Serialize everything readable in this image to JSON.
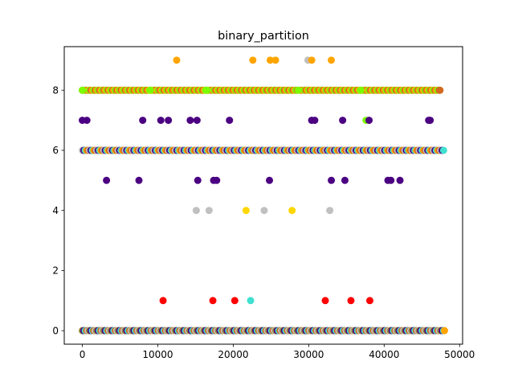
{
  "chart_data": {
    "type": "scatter",
    "title": "binary_partition",
    "xlabel": "",
    "ylabel": "",
    "xlim": [
      -2400,
      50400
    ],
    "ylim": [
      -0.45,
      9.45
    ],
    "x_ticks": [
      0,
      10000,
      20000,
      30000,
      40000,
      50000
    ],
    "y_ticks": [
      0,
      2,
      4,
      6,
      8
    ],
    "grid": false,
    "legend": "none",
    "colors": {
      "indigo": "#4b0082",
      "chocolate": "#d2691e",
      "orange": "#ffa500",
      "lawngreen": "#7cfc00",
      "silver": "#c0c0c0",
      "gold": "#ffd700",
      "red": "#ff0000",
      "turquoise": "#40e0d0",
      "olive": "#9a8a3a"
    },
    "dense_bands": [
      {
        "y": 0,
        "x_from": 0,
        "x_to": 48000,
        "colors": [
          "olive",
          "chocolate",
          "indigo",
          "silver",
          "turquoise"
        ]
      },
      {
        "y": 6,
        "x_from": 0,
        "x_to": 47900,
        "colors": [
          "indigo",
          "chocolate",
          "turquoise",
          "silver",
          "orange"
        ]
      },
      {
        "y": 8,
        "x_from": 0,
        "x_to": 47400,
        "colors": [
          "chocolate",
          "orange",
          "lawngreen"
        ]
      }
    ],
    "points": [
      {
        "x": 12500,
        "y": 9,
        "c": "orange"
      },
      {
        "x": 22600,
        "y": 9,
        "c": "orange"
      },
      {
        "x": 24900,
        "y": 9,
        "c": "orange"
      },
      {
        "x": 25600,
        "y": 9,
        "c": "orange"
      },
      {
        "x": 29900,
        "y": 9,
        "c": "silver"
      },
      {
        "x": 30400,
        "y": 9,
        "c": "orange"
      },
      {
        "x": 33000,
        "y": 9,
        "c": "orange"
      },
      {
        "x": 0,
        "y": 8,
        "c": "lawngreen"
      },
      {
        "x": 9000,
        "y": 8,
        "c": "lawngreen"
      },
      {
        "x": 16500,
        "y": 8,
        "c": "lawngreen"
      },
      {
        "x": 28600,
        "y": 8,
        "c": "lawngreen"
      },
      {
        "x": 36900,
        "y": 8,
        "c": "lawngreen"
      },
      {
        "x": 47400,
        "y": 8,
        "c": "chocolate"
      },
      {
        "x": 0,
        "y": 7,
        "c": "indigo"
      },
      {
        "x": 600,
        "y": 7,
        "c": "indigo"
      },
      {
        "x": 8000,
        "y": 7,
        "c": "indigo"
      },
      {
        "x": 10400,
        "y": 7,
        "c": "indigo"
      },
      {
        "x": 11400,
        "y": 7,
        "c": "indigo"
      },
      {
        "x": 14300,
        "y": 7,
        "c": "indigo"
      },
      {
        "x": 15200,
        "y": 7,
        "c": "indigo"
      },
      {
        "x": 19500,
        "y": 7,
        "c": "indigo"
      },
      {
        "x": 30400,
        "y": 7,
        "c": "indigo"
      },
      {
        "x": 30800,
        "y": 7,
        "c": "indigo"
      },
      {
        "x": 34500,
        "y": 7,
        "c": "indigo"
      },
      {
        "x": 37600,
        "y": 7,
        "c": "lawngreen"
      },
      {
        "x": 38000,
        "y": 7,
        "c": "indigo"
      },
      {
        "x": 45900,
        "y": 7,
        "c": "indigo"
      },
      {
        "x": 46100,
        "y": 7,
        "c": "indigo"
      },
      {
        "x": 3200,
        "y": 5,
        "c": "indigo"
      },
      {
        "x": 7500,
        "y": 5,
        "c": "indigo"
      },
      {
        "x": 15300,
        "y": 5,
        "c": "indigo"
      },
      {
        "x": 17400,
        "y": 5,
        "c": "indigo"
      },
      {
        "x": 17800,
        "y": 5,
        "c": "indigo"
      },
      {
        "x": 24800,
        "y": 5,
        "c": "indigo"
      },
      {
        "x": 33000,
        "y": 5,
        "c": "indigo"
      },
      {
        "x": 34800,
        "y": 5,
        "c": "indigo"
      },
      {
        "x": 40500,
        "y": 5,
        "c": "indigo"
      },
      {
        "x": 40900,
        "y": 5,
        "c": "indigo"
      },
      {
        "x": 42100,
        "y": 5,
        "c": "indigo"
      },
      {
        "x": 15100,
        "y": 4,
        "c": "silver"
      },
      {
        "x": 16800,
        "y": 4,
        "c": "silver"
      },
      {
        "x": 21700,
        "y": 4,
        "c": "gold"
      },
      {
        "x": 24100,
        "y": 4,
        "c": "silver"
      },
      {
        "x": 27800,
        "y": 4,
        "c": "gold"
      },
      {
        "x": 32800,
        "y": 4,
        "c": "silver"
      },
      {
        "x": 10700,
        "y": 1,
        "c": "red"
      },
      {
        "x": 17300,
        "y": 1,
        "c": "red"
      },
      {
        "x": 20200,
        "y": 1,
        "c": "red"
      },
      {
        "x": 22300,
        "y": 1,
        "c": "turquoise"
      },
      {
        "x": 32200,
        "y": 1,
        "c": "red"
      },
      {
        "x": 35600,
        "y": 1,
        "c": "red"
      },
      {
        "x": 38100,
        "y": 1,
        "c": "red"
      },
      {
        "x": 48000,
        "y": 0,
        "c": "orange"
      }
    ]
  }
}
